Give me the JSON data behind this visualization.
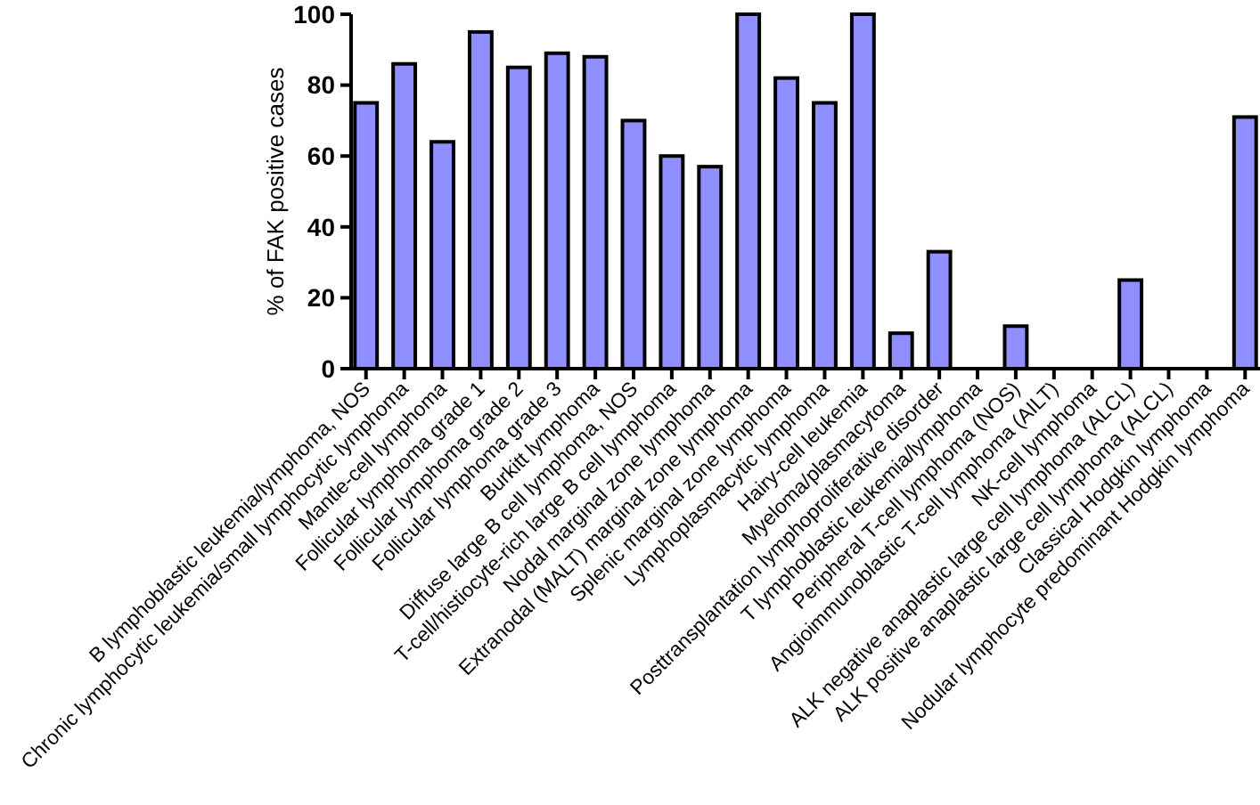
{
  "chart_data": {
    "type": "bar",
    "ylabel": "% of FAK positive cases",
    "categories": [
      "B lymphoblastic leukemia/lymphoma, NOS",
      "Chronic lymphocytic leukemia/small lymphocytic lymphoma",
      "Mantle-cell lymphoma",
      "Follicular lymphoma grade 1",
      "Follicular lymphoma grade 2",
      "Follicular lymphoma grade 3",
      "Burkitt lymphoma",
      "Diffuse large B cell lymphoma, NOS",
      "T-cell/histiocyte-rich large B cell lymphoma",
      "Nodal marginal zone lymphoma",
      "Extranodal (MALT) marginal zone lymphoma",
      "Splenic marginal zone lymphoma",
      "Lymphoplasmacytic lymphoma",
      "Hairy-cell leukemia",
      "Myeloma/plasmacytoma",
      "Posttransplantation lymphoproliferative disorder",
      "T lymphoblastic leukemia/lymphoma",
      "Peripheral T-cell lymphoma (NOS)",
      "Angioimmunoblastic T-cell lymphoma (AILT)",
      "NK-cell lymphoma",
      "ALK negative anaplastic large cell lymphoma (ALCL)",
      "ALK positive anaplastic large cell lymphoma (ALCL)",
      "Classical Hodgkin lymphoma",
      "Nodular lymphocyte predominant Hodgkin lymphoma"
    ],
    "values": [
      75,
      86,
      64,
      95,
      85,
      89,
      88,
      70,
      60,
      57,
      100,
      82,
      75,
      100,
      10,
      33,
      0,
      12,
      0,
      0,
      25,
      0,
      0,
      71
    ],
    "color": "#8f8fff",
    "ylim": [
      0,
      100
    ],
    "yticks": [
      0,
      20,
      40,
      60,
      80,
      100
    ],
    "grid": false
  }
}
